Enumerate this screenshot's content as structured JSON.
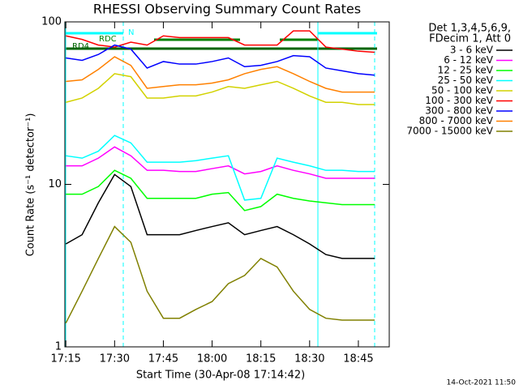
{
  "chart_data": {
    "type": "line",
    "title": "RHESSI Observing Summary Count Rates",
    "xlabel": "Start Time (30-Apr-08 17:14:42)",
    "ylabel": "Count Rate (s⁻¹ detector⁻¹)",
    "legend_header": [
      "Det 1,3,4,5,6,9,",
      "FDecim 1, Att 0"
    ],
    "legend_position": "right",
    "footer": "14-Oct-2021 11:50",
    "annotations": [
      "N",
      "RDC",
      "RD4"
    ],
    "log_y": true,
    "xlim": [
      14.7,
      114.5
    ],
    "ylim": [
      1,
      100
    ],
    "xticks": [
      {
        "value": 15,
        "label": "17:15"
      },
      {
        "value": 30,
        "label": "17:30"
      },
      {
        "value": 45,
        "label": "17:45"
      },
      {
        "value": 60,
        "label": "18:00"
      },
      {
        "value": 75,
        "label": "18:15"
      },
      {
        "value": 90,
        "label": "18:30"
      },
      {
        "value": 105,
        "label": "18:45"
      }
    ],
    "yticks": [
      1,
      10,
      100
    ],
    "x": [
      15,
      20,
      25,
      30,
      35,
      40,
      45,
      50,
      55,
      60,
      65,
      70,
      75,
      80,
      85,
      90,
      95,
      100,
      105,
      110
    ],
    "series": [
      {
        "name": "3 - 6 keV",
        "color": "#000000",
        "values": [
          4.3,
          4.9,
          7.7,
          11.5,
          9.7,
          4.9,
          4.9,
          4.9,
          5.2,
          5.5,
          5.8,
          4.9,
          5.2,
          5.5,
          4.9,
          4.3,
          3.7,
          3.5,
          3.5,
          3.5
        ]
      },
      {
        "name": "6 - 12 keV",
        "color": "#ff00ff",
        "values": [
          13,
          13,
          14.5,
          17,
          15,
          12.2,
          12.2,
          12,
          12,
          12.5,
          13,
          11.6,
          12,
          13,
          12.2,
          11.6,
          10.9,
          10.9,
          10.9,
          10.9
        ]
      },
      {
        "name": "12 - 25 keV",
        "color": "#00ff00",
        "values": [
          8.7,
          8.7,
          9.7,
          12.2,
          10.9,
          8.2,
          8.2,
          8.2,
          8.2,
          8.7,
          8.9,
          6.9,
          7.3,
          8.7,
          8.2,
          7.9,
          7.7,
          7.5,
          7.5,
          7.5
        ]
      },
      {
        "name": "25 - 50 keV",
        "color": "#00ffff",
        "values": [
          15,
          14.5,
          16,
          20,
          18,
          13.7,
          13.7,
          13.7,
          14,
          14.5,
          15,
          8,
          8.2,
          14.5,
          13.7,
          13,
          12.2,
          12.2,
          12,
          12
        ]
      },
      {
        "name": "50 - 100 keV",
        "color": "#d2d200",
        "values": [
          32,
          34,
          39,
          48,
          46,
          34,
          34,
          35,
          35,
          37,
          40,
          39,
          41,
          43,
          39,
          35,
          32,
          32,
          31,
          31
        ]
      },
      {
        "name": "100 - 300 keV",
        "color": "#ff0000",
        "values": [
          82,
          78,
          72,
          70,
          75,
          72,
          82,
          80,
          80,
          80,
          80,
          72,
          72,
          72,
          88,
          88,
          70,
          68,
          66,
          65
        ]
      },
      {
        "name": "300 - 800 keV",
        "color": "#0000ff",
        "values": [
          60,
          58,
          63,
          72,
          68,
          52,
          57,
          55,
          55,
          57,
          60,
          53,
          54,
          57,
          62,
          61,
          52,
          50,
          48,
          47
        ]
      },
      {
        "name": "800 - 7000 keV",
        "color": "#ff8000",
        "values": [
          43,
          44,
          51,
          61,
          54,
          39,
          40,
          41,
          41,
          42,
          44,
          48,
          51,
          53,
          48,
          43,
          39,
          37,
          37,
          37
        ]
      },
      {
        "name": "7000 - 15000 keV",
        "color": "#808000",
        "values": [
          1.4,
          2.2,
          3.5,
          5.5,
          4.4,
          2.2,
          1.5,
          1.5,
          1.7,
          1.9,
          2.45,
          2.75,
          3.5,
          3.1,
          2.2,
          1.7,
          1.5,
          1.46,
          1.46,
          1.46
        ]
      }
    ]
  }
}
